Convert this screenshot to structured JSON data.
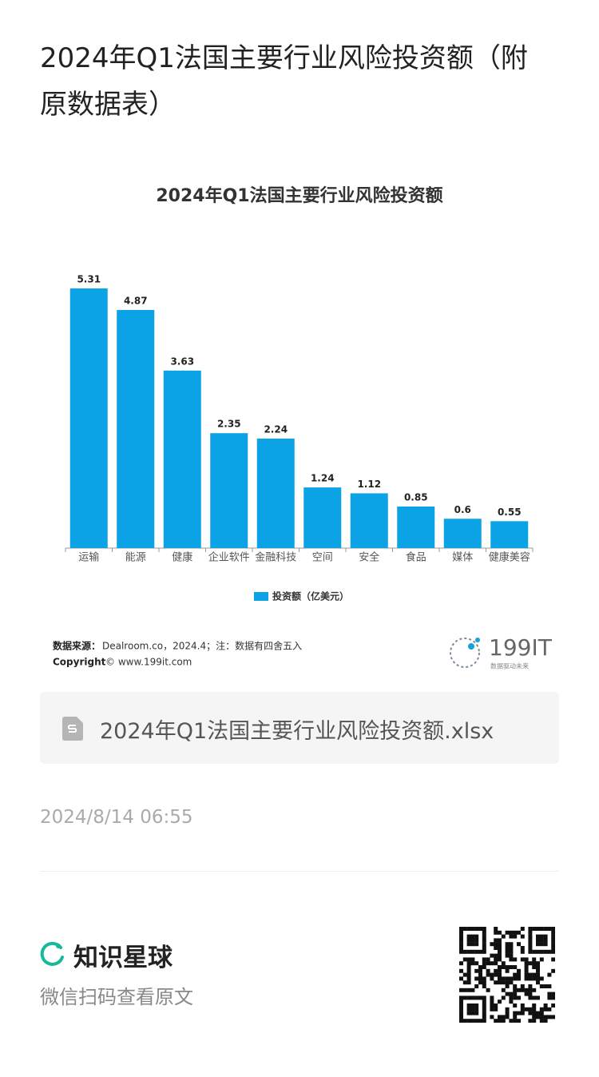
{
  "header": {
    "title": "2024年Q1法国主要行业风险投资额（附原数据表）"
  },
  "chart_data": {
    "type": "bar",
    "title": "2024年Q1法国主要行业风险投资额",
    "categories": [
      "运输",
      "能源",
      "健康",
      "企业软件",
      "金融科技",
      "空间",
      "安全",
      "食品",
      "媒体",
      "健康美容"
    ],
    "series": [
      {
        "name": "投资额（亿美元）",
        "color": "#0ba2e6",
        "values": [
          5.31,
          4.87,
          3.63,
          2.35,
          2.24,
          1.24,
          1.12,
          0.85,
          0.6,
          0.55
        ]
      }
    ],
    "legend": "bottom",
    "grid": false
  },
  "source": {
    "label": "数据来源：",
    "text": "Dealroom.co，2024.4；注：数据有四舍五入",
    "copyright_label": "Copyright",
    "copyright_text": "© www.199it.com",
    "logo": "199IT",
    "logo_slogan": "数据驱动未来"
  },
  "attachment": {
    "filename": "2024年Q1法国主要行业风险投资额.xlsx"
  },
  "date": "2024/8/14 06:55",
  "footer": {
    "brand": "知识星球",
    "hint": "微信扫码查看原文"
  }
}
